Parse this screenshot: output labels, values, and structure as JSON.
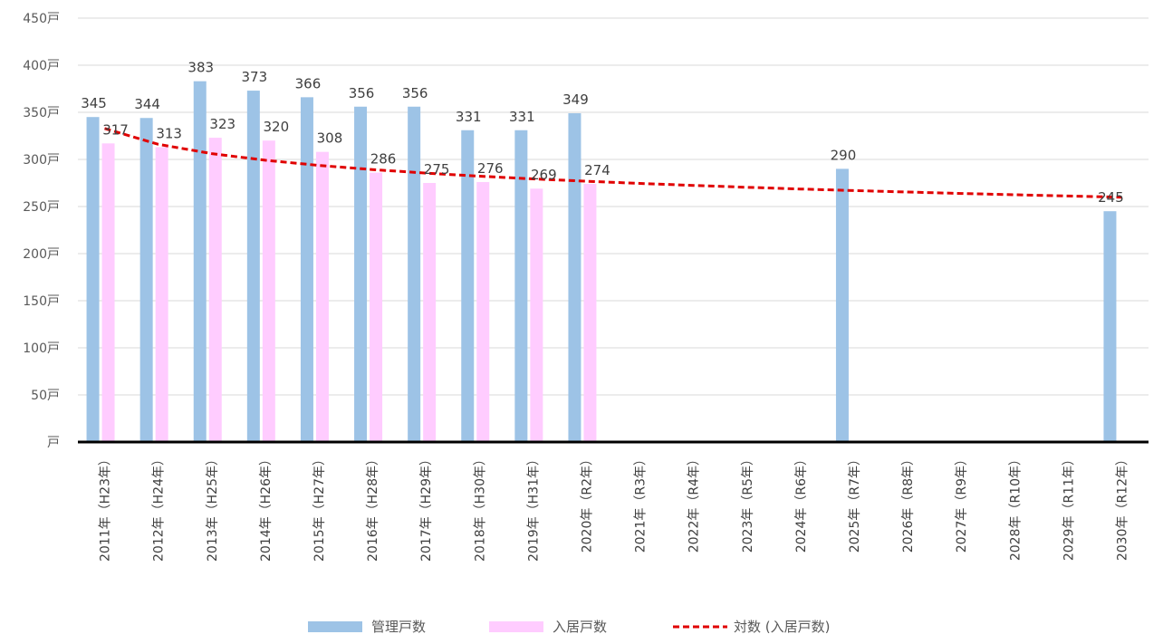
{
  "chart_data": {
    "type": "bar",
    "categories": [
      "2011年（H23年）",
      "2012年（H24年）",
      "2013年（H25年）",
      "2014年（H26年）",
      "2015年（H27年）",
      "2016年（H28年）",
      "2017年（H29年）",
      "2018年（H30年）",
      "2019年（H31年）",
      "2020年（R2年）",
      "2021年（R3年）",
      "2022年（R4年）",
      "2023年（R5年）",
      "2024年（R6年）",
      "2025年（R7年）",
      "2026年（R8年）",
      "2027年（R9年）",
      "2028年（R10年）",
      "2029年（R11年）",
      "2030年（R12年）"
    ],
    "series": [
      {
        "name": "管理戸数",
        "color": "#9dc3e6",
        "values": [
          345,
          344,
          383,
          373,
          366,
          356,
          356,
          331,
          331,
          349,
          null,
          null,
          null,
          null,
          290,
          null,
          null,
          null,
          null,
          245
        ]
      },
      {
        "name": "入居戸数",
        "color": "#ffccff",
        "values": [
          317,
          313,
          323,
          320,
          308,
          286,
          275,
          276,
          269,
          274,
          null,
          null,
          null,
          null,
          null,
          null,
          null,
          null,
          null,
          null
        ]
      }
    ],
    "trendline": {
      "name": "対数 (入居戸数)",
      "type": "logarithmic",
      "color": "#e00000",
      "style": "dashed"
    },
    "y_ticks": [
      "戸",
      "50戸",
      "100戸",
      "150戸",
      "200戸",
      "250戸",
      "300戸",
      "350戸",
      "400戸",
      "450戸"
    ],
    "ylim": [
      0,
      450
    ],
    "grid": true,
    "legend_position": "bottom"
  }
}
